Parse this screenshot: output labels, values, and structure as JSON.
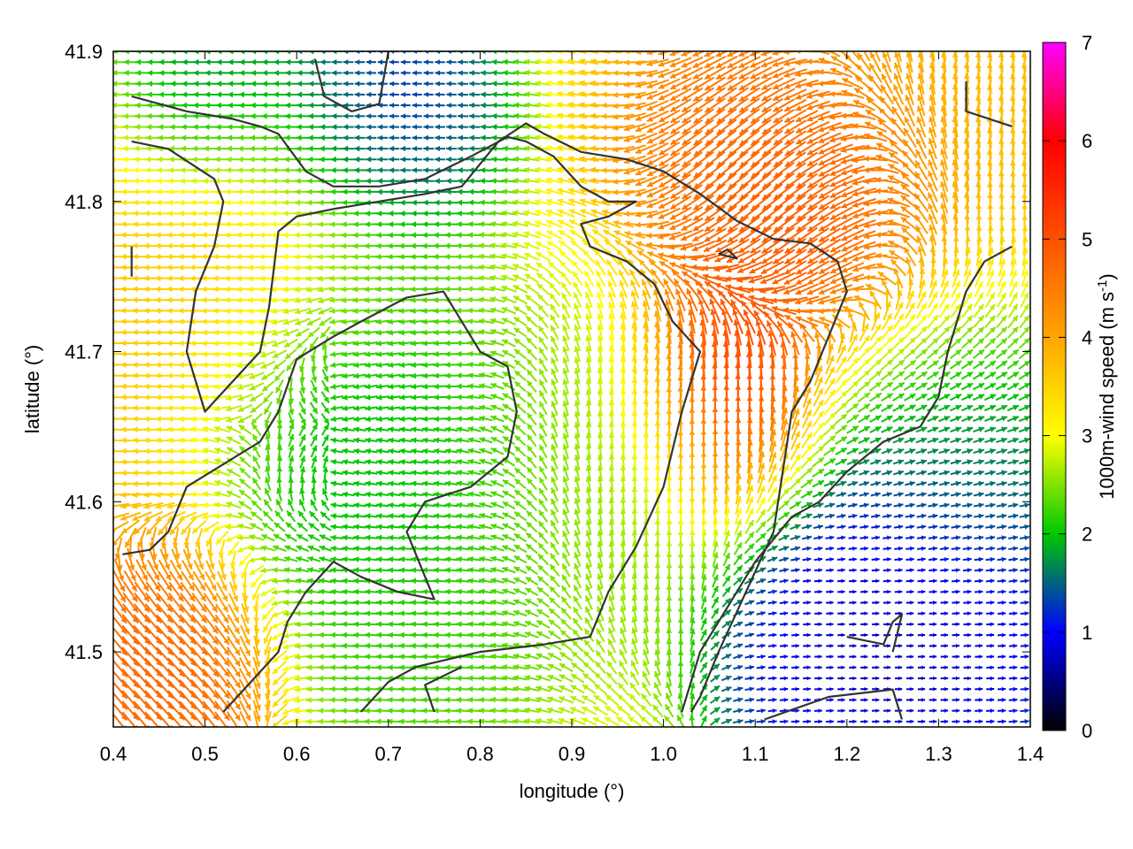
{
  "chart_data": {
    "type": "vector-field",
    "xlabel": "longitude (°)",
    "ylabel": "latitude (°)",
    "xlim": [
      0.4,
      1.4
    ],
    "ylim": [
      41.45,
      41.9
    ],
    "x_ticks": [
      "0.4",
      "0.5",
      "0.6",
      "0.7",
      "0.8",
      "0.9",
      "1.0",
      "1.1",
      "1.2",
      "1.3",
      "1.4"
    ],
    "y_ticks": [
      "41.5",
      "41.6",
      "41.7",
      "41.8",
      "41.9"
    ],
    "grid": false,
    "colorbar": {
      "label_main": "1000m-wind speed (m s",
      "label_sup": "-1",
      "label_end": ")",
      "range": [
        0,
        7
      ],
      "ticks": [
        "0",
        "1",
        "2",
        "3",
        "4",
        "5",
        "6",
        "7"
      ],
      "colors": [
        "#000000",
        "#0000ff",
        "#00c800",
        "#ffff00",
        "#ffa500",
        "#ff5000",
        "#ff0000",
        "#ff00ff"
      ]
    },
    "wind_regions": [
      {
        "lon": 0.64,
        "lat": 41.65,
        "speed": 1.5,
        "radius": 0.08,
        "direction": "converging"
      },
      {
        "lon": 0.72,
        "lat": 41.58,
        "speed": 2.1,
        "radius": 0.1,
        "direction": "W"
      },
      {
        "lon": 0.5,
        "lat": 41.88,
        "speed": 1.2,
        "radius": 0.06,
        "direction": "W"
      },
      {
        "lon": 0.68,
        "lat": 41.86,
        "speed": 1.0,
        "radius": 0.07,
        "direction": "W"
      },
      {
        "lon": 1.08,
        "lat": 41.67,
        "speed": 5.6,
        "radius": 0.06,
        "direction": "N"
      },
      {
        "lon": 1.2,
        "lat": 41.79,
        "speed": 5.4,
        "radius": 0.07,
        "direction": "SW"
      },
      {
        "lon": 1.13,
        "lat": 41.82,
        "speed": 4.7,
        "radius": 0.07,
        "direction": "SW"
      },
      {
        "lon": 1.25,
        "lat": 41.54,
        "speed": 0.6,
        "radius": 0.1,
        "direction": "E"
      },
      {
        "lon": 1.33,
        "lat": 41.63,
        "speed": 1.4,
        "radius": 0.06,
        "direction": "E"
      },
      {
        "lon": 1.3,
        "lat": 41.68,
        "speed": 2.4,
        "radius": 0.08,
        "direction": "NE"
      },
      {
        "lon": 0.47,
        "lat": 41.5,
        "speed": 4.8,
        "radius": 0.06,
        "direction": "SE"
      },
      {
        "lon": 0.5,
        "lat": 41.75,
        "speed": 3.6,
        "radius": 0.12,
        "direction": "W"
      },
      {
        "lon": 0.95,
        "lat": 41.62,
        "speed": 2.6,
        "radius": 0.08,
        "direction": "N"
      },
      {
        "lon": 1.3,
        "lat": 41.85,
        "speed": 3.7,
        "radius": 0.1,
        "direction": "N"
      }
    ],
    "contours": [
      [
        [
          0.42,
          41.87
        ],
        [
          0.48,
          41.86
        ],
        [
          0.53,
          41.855
        ],
        [
          0.56,
          41.85
        ],
        [
          0.58,
          41.845
        ],
        [
          0.61,
          41.82
        ],
        [
          0.64,
          41.81
        ],
        [
          0.69,
          41.81
        ],
        [
          0.74,
          41.815
        ],
        [
          0.79,
          41.83
        ],
        [
          0.83,
          41.843
        ],
        [
          0.85,
          41.84
        ],
        [
          0.88,
          41.83
        ],
        [
          0.91,
          41.81
        ],
        [
          0.94,
          41.8
        ],
        [
          0.97,
          41.8
        ],
        [
          0.94,
          41.79
        ],
        [
          0.91,
          41.785
        ],
        [
          0.92,
          41.77
        ],
        [
          0.96,
          41.76
        ],
        [
          0.99,
          41.745
        ],
        [
          1.01,
          41.72
        ],
        [
          1.04,
          41.7
        ],
        [
          1.02,
          41.66
        ],
        [
          1.0,
          41.61
        ],
        [
          0.97,
          41.57
        ],
        [
          0.94,
          41.54
        ],
        [
          0.92,
          41.51
        ],
        [
          0.87,
          41.505
        ],
        [
          0.8,
          41.5
        ],
        [
          0.73,
          41.49
        ],
        [
          0.7,
          41.48
        ],
        [
          0.67,
          41.46
        ]
      ],
      [
        [
          0.42,
          41.84
        ],
        [
          0.46,
          41.835
        ],
        [
          0.51,
          41.815
        ],
        [
          0.52,
          41.8
        ],
        [
          0.51,
          41.77
        ],
        [
          0.49,
          41.74
        ],
        [
          0.48,
          41.7
        ],
        [
          0.5,
          41.66
        ],
        [
          0.53,
          41.68
        ],
        [
          0.56,
          41.7
        ],
        [
          0.57,
          41.73
        ],
        [
          0.58,
          41.78
        ],
        [
          0.6,
          41.79
        ],
        [
          0.64,
          41.795
        ],
        [
          0.69,
          41.8
        ],
        [
          0.74,
          41.805
        ],
        [
          0.78,
          41.81
        ],
        [
          0.82,
          41.84
        ],
        [
          0.85,
          41.852
        ],
        [
          0.87,
          41.845
        ],
        [
          0.91,
          41.833
        ],
        [
          0.96,
          41.828
        ],
        [
          1.0,
          41.82
        ],
        [
          1.04,
          41.805
        ],
        [
          1.08,
          41.787
        ],
        [
          1.12,
          41.775
        ],
        [
          1.16,
          41.772
        ],
        [
          1.19,
          41.76
        ],
        [
          1.2,
          41.74
        ],
        [
          1.18,
          41.71
        ],
        [
          1.16,
          41.68
        ],
        [
          1.14,
          41.66
        ],
        [
          1.13,
          41.62
        ],
        [
          1.12,
          41.58
        ],
        [
          1.09,
          41.54
        ],
        [
          1.06,
          41.5
        ],
        [
          1.04,
          41.47
        ],
        [
          1.03,
          41.46
        ]
      ],
      [
        [
          0.41,
          41.565
        ],
        [
          0.44,
          41.568
        ],
        [
          0.46,
          41.58
        ],
        [
          0.48,
          41.61
        ],
        [
          0.52,
          41.625
        ],
        [
          0.56,
          41.64
        ],
        [
          0.58,
          41.66
        ],
        [
          0.6,
          41.695
        ],
        [
          0.64,
          41.71
        ],
        [
          0.67,
          41.72
        ],
        [
          0.72,
          41.736
        ],
        [
          0.76,
          41.74
        ],
        [
          0.78,
          41.72
        ],
        [
          0.8,
          41.7
        ],
        [
          0.83,
          41.69
        ],
        [
          0.84,
          41.66
        ],
        [
          0.83,
          41.63
        ],
        [
          0.79,
          41.61
        ],
        [
          0.74,
          41.6
        ],
        [
          0.72,
          41.58
        ],
        [
          0.74,
          41.55
        ],
        [
          0.75,
          41.535
        ],
        [
          0.71,
          41.54
        ],
        [
          0.67,
          41.55
        ],
        [
          0.64,
          41.56
        ],
        [
          0.61,
          41.54
        ],
        [
          0.59,
          41.52
        ],
        [
          0.58,
          41.5
        ],
        [
          0.55,
          41.48
        ],
        [
          0.52,
          41.46
        ]
      ],
      [
        [
          0.78,
          41.49
        ],
        [
          0.74,
          41.478
        ],
        [
          0.75,
          41.46
        ]
      ],
      [
        [
          1.02,
          41.46
        ],
        [
          1.04,
          41.5
        ],
        [
          1.07,
          41.53
        ],
        [
          1.1,
          41.56
        ],
        [
          1.14,
          41.59
        ],
        [
          1.17,
          41.6
        ],
        [
          1.2,
          41.62
        ],
        [
          1.24,
          41.64
        ],
        [
          1.28,
          41.65
        ],
        [
          1.3,
          41.67
        ],
        [
          1.31,
          41.7
        ],
        [
          1.32,
          41.72
        ],
        [
          1.33,
          41.74
        ],
        [
          1.35,
          41.76
        ],
        [
          1.38,
          41.77
        ]
      ],
      [
        [
          0.62,
          41.895
        ],
        [
          0.63,
          41.87
        ],
        [
          0.66,
          41.86
        ],
        [
          0.69,
          41.865
        ],
        [
          0.7,
          41.9
        ]
      ],
      [
        [
          1.33,
          41.88
        ],
        [
          1.33,
          41.86
        ],
        [
          1.38,
          41.85
        ]
      ],
      [
        [
          1.2,
          41.51
        ],
        [
          1.24,
          41.505
        ],
        [
          1.25,
          41.52
        ],
        [
          1.26,
          41.525
        ],
        [
          1.25,
          41.5
        ]
      ],
      [
        [
          1.11,
          41.455
        ],
        [
          1.18,
          41.47
        ],
        [
          1.25,
          41.475
        ],
        [
          1.26,
          41.455
        ]
      ],
      [
        [
          1.06,
          41.765
        ],
        [
          1.08,
          41.762
        ],
        [
          1.07,
          41.768
        ],
        [
          1.06,
          41.765
        ]
      ],
      [
        [
          0.42,
          41.77
        ],
        [
          0.42,
          41.75
        ]
      ]
    ]
  }
}
